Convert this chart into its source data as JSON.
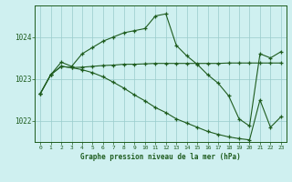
{
  "title": "Graphe pression niveau de la mer (hPa)",
  "hours": [
    0,
    1,
    2,
    3,
    4,
    5,
    6,
    7,
    8,
    9,
    10,
    11,
    12,
    13,
    14,
    15,
    16,
    17,
    18,
    19,
    20,
    21,
    22,
    23
  ],
  "line_max": [
    1022.65,
    1023.1,
    1023.4,
    1023.3,
    1023.6,
    1023.75,
    1023.9,
    1024.0,
    1024.1,
    1024.15,
    1024.2,
    1024.5,
    1024.55,
    1023.8,
    1023.55,
    1023.35,
    1023.1,
    1022.9,
    1022.6,
    1022.05,
    1021.88,
    1023.6,
    1023.5,
    1023.65
  ],
  "line_mid": [
    1022.65,
    1023.1,
    1023.3,
    1023.27,
    1023.28,
    1023.3,
    1023.32,
    1023.33,
    1023.35,
    1023.35,
    1023.36,
    1023.37,
    1023.37,
    1023.37,
    1023.37,
    1023.37,
    1023.37,
    1023.37,
    1023.38,
    1023.38,
    1023.38,
    1023.38,
    1023.38,
    1023.38
  ],
  "line_min": [
    1022.65,
    1023.1,
    1023.3,
    1023.27,
    1023.22,
    1023.15,
    1023.05,
    1022.92,
    1022.78,
    1022.62,
    1022.48,
    1022.32,
    1022.2,
    1022.05,
    1021.95,
    1021.85,
    1021.75,
    1021.68,
    1021.62,
    1021.58,
    1021.55,
    1022.5,
    1021.85,
    1022.1
  ],
  "line_color": "#1e5c1e",
  "bg_color": "#cff0f0",
  "grid_color": "#99cccc",
  "text_color": "#1e5c1e",
  "ylim_min": 1021.5,
  "ylim_max": 1024.75,
  "yticks": [
    1022,
    1023,
    1024
  ],
  "fig_width": 3.2,
  "fig_height": 2.0,
  "dpi": 100
}
